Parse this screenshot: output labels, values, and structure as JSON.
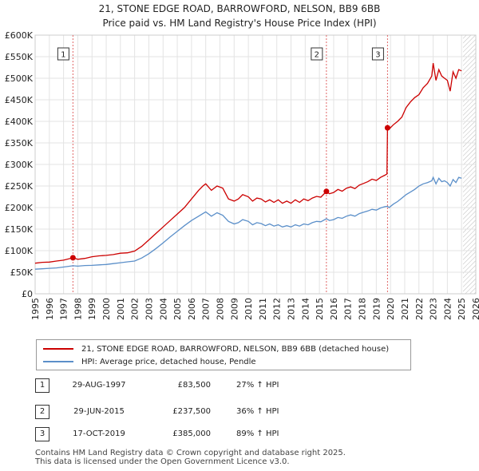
{
  "title_line1": "21, STONE EDGE ROAD, BARROWFORD, NELSON, BB9 6BB",
  "title_line2": "Price paid vs. HM Land Registry's House Price Index (HPI)",
  "colors": {
    "property": "#cc0000",
    "hpi": "#5b8fc9",
    "marker_line": "#e06666",
    "hatch": "#bbbbbb"
  },
  "legend": {
    "property_label": "21, STONE EDGE ROAD, BARROWFORD, NELSON, BB9 6BB (detached house)",
    "hpi_label": "HPI: Average price, detached house, Pendle"
  },
  "transactions": [
    {
      "num": "1",
      "date": "29-AUG-1997",
      "price": "£83,500",
      "hpi": "27% ↑ HPI"
    },
    {
      "num": "2",
      "date": "29-JUN-2015",
      "price": "£237,500",
      "hpi": "36% ↑ HPI"
    },
    {
      "num": "3",
      "date": "17-OCT-2019",
      "price": "£385,000",
      "hpi": "89% ↑ HPI"
    }
  ],
  "footer": {
    "line1": "Contains HM Land Registry data © Crown copyright and database right 2025.",
    "line2": "This data is licensed under the Open Government Licence v3.0."
  },
  "chart_data": {
    "type": "line",
    "xlabel": "",
    "ylabel": "",
    "xlim": [
      1995,
      2026
    ],
    "ylim": [
      0,
      600000
    ],
    "y_ticks": [
      0,
      50000,
      100000,
      150000,
      200000,
      250000,
      300000,
      350000,
      400000,
      450000,
      500000,
      550000,
      600000
    ],
    "y_tick_labels": [
      "£0",
      "£50K",
      "£100K",
      "£150K",
      "£200K",
      "£250K",
      "£300K",
      "£350K",
      "£400K",
      "£450K",
      "£500K",
      "£550K",
      "£600K"
    ],
    "x_ticks": [
      1995,
      1996,
      1997,
      1998,
      1999,
      2000,
      2001,
      2002,
      2003,
      2004,
      2005,
      2006,
      2007,
      2008,
      2009,
      2010,
      2011,
      2012,
      2013,
      2014,
      2015,
      2016,
      2017,
      2018,
      2019,
      2020,
      2021,
      2022,
      2023,
      2024,
      2025,
      2026
    ],
    "x_tick_labels": [
      "1995",
      "1996",
      "1997",
      "1998",
      "1999",
      "2000",
      "2001",
      "2002",
      "2003",
      "2004",
      "2005",
      "2006",
      "2007",
      "2008",
      "2009",
      "2010",
      "2011",
      "2012",
      "2013",
      "2014",
      "2015",
      "2016",
      "2017",
      "2018",
      "2019",
      "2020",
      "2021",
      "2022",
      "2023",
      "2024",
      "2025",
      "2026"
    ],
    "grid": true,
    "hatched_from": 2025.1,
    "series": [
      {
        "name": "21, STONE EDGE ROAD, BARROWFORD, NELSON, BB9 6BB (detached house)",
        "x": [
          1995.0,
          1995.5,
          1996.0,
          1996.5,
          1997.0,
          1997.66,
          1998.0,
          1998.5,
          1999.0,
          1999.5,
          2000.0,
          2000.5,
          2001.0,
          2001.5,
          2002.0,
          2002.5,
          2003.0,
          2003.5,
          2004.0,
          2004.5,
          2005.0,
          2005.5,
          2006.0,
          2006.5,
          2006.8,
          2007.0,
          2007.4,
          2007.8,
          2008.2,
          2008.6,
          2009.0,
          2009.3,
          2009.6,
          2010.0,
          2010.3,
          2010.6,
          2010.9,
          2011.2,
          2011.5,
          2011.8,
          2012.1,
          2012.4,
          2012.7,
          2013.0,
          2013.3,
          2013.6,
          2013.9,
          2014.2,
          2014.5,
          2014.8,
          2015.1,
          2015.49,
          2015.7,
          2016.0,
          2016.3,
          2016.6,
          2016.9,
          2017.2,
          2017.5,
          2017.8,
          2018.1,
          2018.4,
          2018.7,
          2019.0,
          2019.3,
          2019.6,
          2019.75,
          2019.79,
          2019.9,
          2020.2,
          2020.5,
          2020.8,
          2021.1,
          2021.4,
          2021.7,
          2022.0,
          2022.3,
          2022.6,
          2022.9,
          2023.0,
          2023.2,
          2023.4,
          2023.6,
          2023.8,
          2024.0,
          2024.2,
          2024.4,
          2024.6,
          2024.8,
          2025.0
        ],
        "y": [
          71000,
          73000,
          73500,
          76000,
          78000,
          83500,
          80000,
          82000,
          86000,
          88000,
          89000,
          91000,
          94000,
          95000,
          99000,
          110000,
          125000,
          140000,
          155000,
          170000,
          185000,
          200000,
          220000,
          240000,
          250000,
          255000,
          240000,
          250000,
          245000,
          220000,
          215000,
          220000,
          230000,
          225000,
          215000,
          222000,
          220000,
          213000,
          218000,
          212000,
          218000,
          210000,
          215000,
          210000,
          218000,
          212000,
          220000,
          216000,
          222000,
          226000,
          224000,
          237500,
          232000,
          235000,
          242000,
          238000,
          245000,
          248000,
          244000,
          252000,
          256000,
          260000,
          266000,
          263000,
          270000,
          275000,
          278000,
          385000,
          382000,
          392000,
          400000,
          410000,
          432000,
          445000,
          455000,
          462000,
          478000,
          488000,
          505000,
          535000,
          495000,
          520000,
          505000,
          500000,
          495000,
          470000,
          515000,
          500000,
          520000,
          517000
        ]
      },
      {
        "name": "HPI: Average price, detached house, Pendle",
        "x": [
          1995.0,
          1995.5,
          1996.0,
          1996.5,
          1997.0,
          1997.66,
          1998.0,
          1998.5,
          1999.0,
          1999.5,
          2000.0,
          2000.5,
          2001.0,
          2001.5,
          2002.0,
          2002.5,
          2003.0,
          2003.5,
          2004.0,
          2004.5,
          2005.0,
          2005.5,
          2006.0,
          2006.5,
          2006.8,
          2007.0,
          2007.4,
          2007.8,
          2008.2,
          2008.6,
          2009.0,
          2009.3,
          2009.6,
          2010.0,
          2010.3,
          2010.6,
          2010.9,
          2011.2,
          2011.5,
          2011.8,
          2012.1,
          2012.4,
          2012.7,
          2013.0,
          2013.3,
          2013.6,
          2013.9,
          2014.2,
          2014.5,
          2014.8,
          2015.1,
          2015.49,
          2015.7,
          2016.0,
          2016.3,
          2016.6,
          2016.9,
          2017.2,
          2017.5,
          2017.8,
          2018.1,
          2018.4,
          2018.7,
          2019.0,
          2019.3,
          2019.6,
          2019.79,
          2019.9,
          2020.2,
          2020.5,
          2020.8,
          2021.1,
          2021.4,
          2021.7,
          2022.0,
          2022.3,
          2022.6,
          2022.9,
          2023.0,
          2023.2,
          2023.4,
          2023.6,
          2023.8,
          2024.0,
          2024.2,
          2024.4,
          2024.6,
          2024.8,
          2025.0
        ],
        "y": [
          57000,
          58000,
          59000,
          60000,
          62000,
          65000,
          64000,
          65500,
          66000,
          67000,
          68000,
          70000,
          72000,
          74000,
          76000,
          83000,
          93000,
          105000,
          118000,
          132000,
          145000,
          158000,
          170000,
          180000,
          186000,
          190000,
          180000,
          188000,
          182000,
          168000,
          162000,
          165000,
          172000,
          168000,
          160000,
          165000,
          163000,
          158000,
          162000,
          157000,
          160000,
          155000,
          158000,
          155000,
          160000,
          157000,
          162000,
          160000,
          165000,
          168000,
          167000,
          174000,
          170000,
          172000,
          177000,
          175000,
          180000,
          183000,
          180000,
          186000,
          189000,
          192000,
          196000,
          194000,
          199000,
          202000,
          203000,
          200000,
          208000,
          214000,
          222000,
          230000,
          236000,
          242000,
          250000,
          255000,
          258000,
          262000,
          270000,
          255000,
          268000,
          260000,
          262000,
          258000,
          250000,
          265000,
          258000,
          270000,
          268000
        ]
      }
    ],
    "markers": [
      {
        "label": "1",
        "x": 1997.66,
        "y": 83500
      },
      {
        "label": "2",
        "x": 2015.49,
        "y": 237500
      },
      {
        "label": "3",
        "x": 2019.79,
        "y": 385000
      }
    ]
  }
}
